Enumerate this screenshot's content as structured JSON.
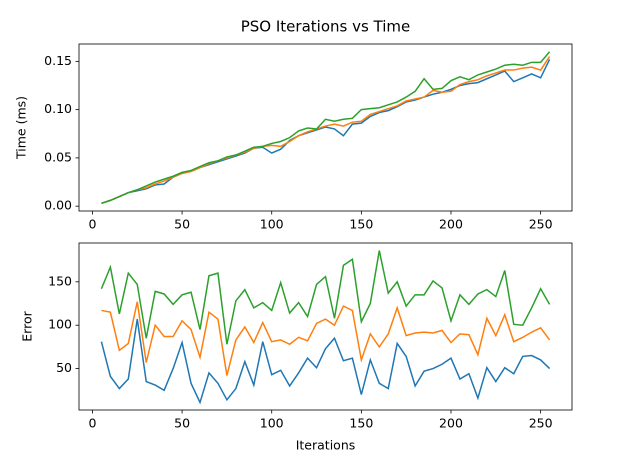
{
  "chart_data": [
    {
      "type": "line",
      "title": "PSO Iterations vs Time",
      "y_label": "Time (ms)",
      "x": [
        5,
        10,
        15,
        20,
        25,
        30,
        35,
        40,
        45,
        50,
        55,
        60,
        65,
        70,
        75,
        80,
        85,
        90,
        95,
        100,
        105,
        110,
        115,
        120,
        125,
        130,
        135,
        140,
        145,
        150,
        155,
        160,
        165,
        170,
        175,
        180,
        185,
        190,
        195,
        200,
        205,
        210,
        215,
        220,
        225,
        230,
        235,
        240,
        245,
        250,
        255
      ],
      "series": [
        {
          "color": "#1f77b4",
          "values": [
            0.003,
            0.006,
            0.01,
            0.014,
            0.016,
            0.018,
            0.022,
            0.023,
            0.03,
            0.034,
            0.036,
            0.04,
            0.043,
            0.046,
            0.049,
            0.052,
            0.055,
            0.06,
            0.061,
            0.055,
            0.059,
            0.068,
            0.073,
            0.076,
            0.079,
            0.082,
            0.08,
            0.073,
            0.085,
            0.086,
            0.093,
            0.097,
            0.099,
            0.103,
            0.108,
            0.11,
            0.113,
            0.116,
            0.118,
            0.121,
            0.125,
            0.127,
            0.128,
            0.132,
            0.136,
            0.14,
            0.129,
            0.133,
            0.137,
            0.133,
            0.152
          ]
        },
        {
          "color": "#ff7f0e",
          "values": [
            0.003,
            0.006,
            0.01,
            0.014,
            0.017,
            0.019,
            0.023,
            0.026,
            0.03,
            0.034,
            0.036,
            0.04,
            0.044,
            0.047,
            0.05,
            0.053,
            0.056,
            0.06,
            0.062,
            0.063,
            0.062,
            0.067,
            0.073,
            0.077,
            0.08,
            0.083,
            0.085,
            0.083,
            0.087,
            0.088,
            0.095,
            0.098,
            0.101,
            0.104,
            0.109,
            0.111,
            0.113,
            0.12,
            0.118,
            0.119,
            0.126,
            0.129,
            0.131,
            0.135,
            0.138,
            0.141,
            0.141,
            0.143,
            0.144,
            0.141,
            0.155
          ]
        },
        {
          "color": "#2ca02c",
          "values": [
            0.003,
            0.006,
            0.01,
            0.014,
            0.017,
            0.021,
            0.025,
            0.028,
            0.031,
            0.035,
            0.037,
            0.041,
            0.045,
            0.047,
            0.051,
            0.053,
            0.057,
            0.061,
            0.062,
            0.065,
            0.067,
            0.071,
            0.078,
            0.081,
            0.08,
            0.09,
            0.088,
            0.09,
            0.091,
            0.1,
            0.101,
            0.102,
            0.105,
            0.108,
            0.113,
            0.119,
            0.132,
            0.121,
            0.122,
            0.13,
            0.134,
            0.131,
            0.136,
            0.139,
            0.142,
            0.146,
            0.147,
            0.146,
            0.149,
            0.149,
            0.16
          ]
        }
      ],
      "xlim": [
        -7.5,
        267.5
      ],
      "xticks": [
        0,
        50,
        100,
        150,
        200,
        250
      ],
      "ylim": [
        -0.005,
        0.168
      ],
      "yticks": [
        {
          "value": 0,
          "label": "0.00"
        },
        {
          "value": 0.05,
          "label": "0.05"
        },
        {
          "value": 0.1,
          "label": "0.10"
        },
        {
          "value": 0.15,
          "label": "0.15"
        }
      ]
    },
    {
      "type": "line",
      "x_label": "Iterations",
      "y_label": "Error",
      "x": [
        5,
        10,
        15,
        20,
        25,
        30,
        35,
        40,
        45,
        50,
        55,
        60,
        65,
        70,
        75,
        80,
        85,
        90,
        95,
        100,
        105,
        110,
        115,
        120,
        125,
        130,
        135,
        140,
        145,
        150,
        155,
        160,
        165,
        170,
        175,
        180,
        185,
        190,
        195,
        200,
        205,
        210,
        215,
        220,
        225,
        230,
        235,
        240,
        245,
        250,
        255
      ],
      "series": [
        {
          "color": "#1f77b4",
          "values": [
            81,
            41,
            27,
            38,
            107,
            35,
            31,
            25,
            50,
            80,
            33,
            11,
            45,
            33,
            14,
            27,
            58,
            31,
            81,
            43,
            48,
            30,
            45,
            62,
            51,
            73,
            85,
            59,
            62,
            20,
            60,
            33,
            27,
            79,
            64,
            30,
            47,
            50,
            55,
            62,
            38,
            44,
            16,
            51,
            35,
            51,
            44,
            64,
            65,
            60,
            50
          ]
        },
        {
          "color": "#ff7f0e",
          "values": [
            117,
            115,
            71,
            79,
            127,
            57,
            100,
            87,
            87,
            105,
            95,
            63,
            115,
            107,
            42,
            83,
            98,
            80,
            103,
            81,
            83,
            78,
            86,
            82,
            102,
            107,
            100,
            122,
            117,
            60,
            90,
            75,
            90,
            120,
            88,
            91,
            92,
            91,
            94,
            80,
            90,
            89,
            66,
            108,
            88,
            112,
            81,
            86,
            92,
            97,
            83
          ]
        },
        {
          "color": "#2ca02c",
          "values": [
            142,
            167,
            113,
            160,
            147,
            85,
            139,
            136,
            124,
            135,
            138,
            95,
            157,
            160,
            78,
            128,
            141,
            120,
            126,
            117,
            149,
            114,
            126,
            110,
            147,
            156,
            108,
            169,
            176,
            104,
            125,
            186,
            137,
            150,
            122,
            135,
            135,
            151,
            143,
            105,
            135,
            124,
            136,
            141,
            133,
            163,
            101,
            100,
            120,
            142,
            124
          ]
        }
      ],
      "xlim": [
        -7.5,
        267.5
      ],
      "xticks": [
        0,
        50,
        100,
        150,
        200,
        250
      ],
      "ylim": [
        2.25,
        194.75
      ],
      "yticks": [
        50,
        100,
        150
      ]
    }
  ]
}
